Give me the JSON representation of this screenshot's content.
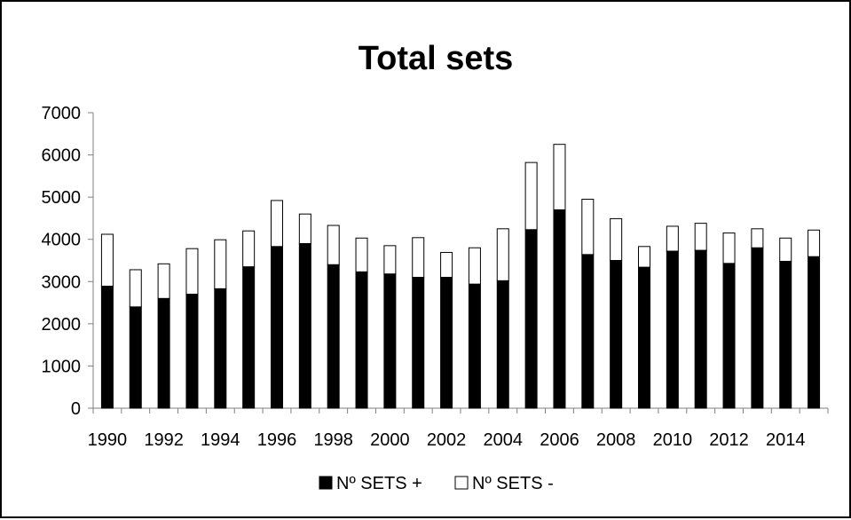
{
  "chart_data": {
    "type": "bar",
    "stacked": true,
    "title": "Total sets",
    "xlabel": "",
    "ylabel": "",
    "ylim": [
      0,
      7000
    ],
    "yticks": [
      0,
      1000,
      2000,
      3000,
      4000,
      5000,
      6000,
      7000
    ],
    "categories": [
      1990,
      1991,
      1992,
      1993,
      1994,
      1995,
      1996,
      1997,
      1998,
      1999,
      2000,
      2001,
      2002,
      2003,
      2004,
      2005,
      2006,
      2007,
      2008,
      2009,
      2010,
      2011,
      2012,
      2013,
      2014,
      2015
    ],
    "xtick_labels": [
      "1990",
      "1992",
      "1994",
      "1996",
      "1998",
      "2000",
      "2002",
      "2004",
      "2006",
      "2008",
      "2010",
      "2012",
      "2014"
    ],
    "grid": false,
    "legend_position": "bottom",
    "series": [
      {
        "name": "Nº SETS +",
        "color": "#000000",
        "values": [
          2890,
          2400,
          2600,
          2700,
          2830,
          3350,
          3830,
          3900,
          3400,
          3230,
          3180,
          3100,
          3100,
          2940,
          3020,
          4230,
          4700,
          3640,
          3500,
          3340,
          3720,
          3740,
          3430,
          3800,
          3480,
          3590
        ]
      },
      {
        "name": "Nº SETS -",
        "color": "#ffffff",
        "values": [
          1230,
          880,
          820,
          1080,
          1160,
          850,
          1090,
          700,
          930,
          800,
          670,
          940,
          590,
          860,
          1230,
          1590,
          1550,
          1310,
          990,
          490,
          590,
          640,
          720,
          450,
          550,
          630
        ]
      }
    ]
  }
}
